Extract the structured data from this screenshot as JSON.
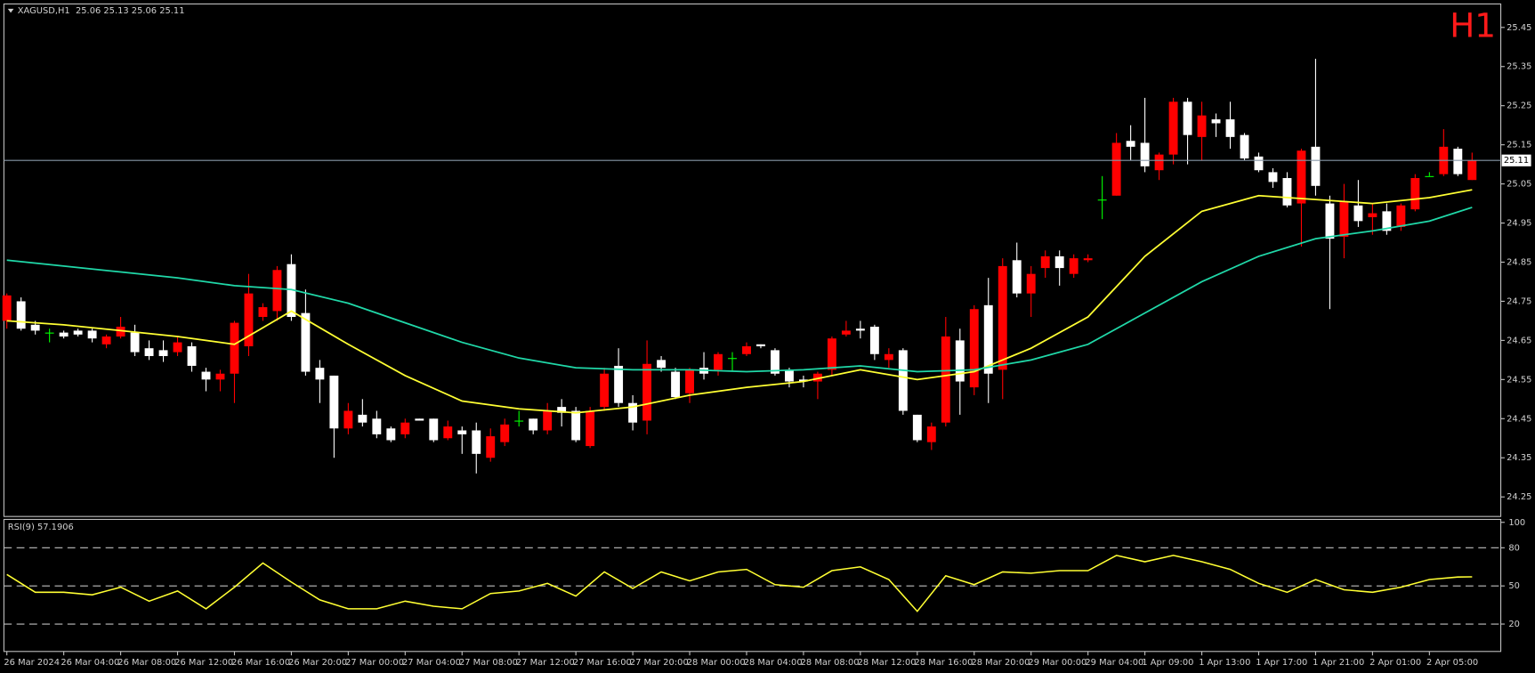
{
  "chart_data": [
    {
      "type": "candlestick",
      "title": "XAGUSD,H1  25.06 25.13 25.06 25.11",
      "badge": "H1",
      "categories": [
        "26 Mar 2024",
        null,
        null,
        null,
        "26 Mar 04:00",
        null,
        null,
        null,
        "26 Mar 08:00",
        null,
        null,
        null,
        "26 Mar 12:00",
        null,
        null,
        null,
        "26 Mar 16:00",
        null,
        null,
        null,
        "26 Mar 20:00",
        null,
        null,
        null,
        "27 Mar 00:00",
        null,
        null,
        null,
        "27 Mar 04:00",
        null,
        null,
        null,
        "27 Mar 08:00",
        null,
        null,
        null,
        "27 Mar 12:00",
        null,
        null,
        null,
        "27 Mar 16:00",
        null,
        null,
        null,
        "27 Mar 20:00",
        null,
        null,
        null,
        "28 Mar 00:00",
        null,
        null,
        null,
        "28 Mar 04:00",
        null,
        null,
        null,
        "28 Mar 08:00",
        null,
        null,
        null,
        "28 Mar 12:00",
        null,
        null,
        null,
        "28 Mar 16:00",
        null,
        null,
        null,
        "28 Mar 20:00",
        null,
        null,
        null,
        "29 Mar 00:00",
        null,
        null,
        null,
        "29 Mar 04:00",
        null,
        null,
        null,
        "1 Apr 09:00",
        null,
        null,
        null,
        "1 Apr 13:00",
        null,
        null,
        null,
        "1 Apr 17:00",
        null,
        null,
        null,
        "1 Apr 21:00",
        null,
        null,
        null,
        "2 Apr 01:00",
        null,
        null,
        null,
        "2 Apr 05:00",
        null,
        null,
        null
      ],
      "open": [
        24.7,
        24.75,
        24.69,
        24.67,
        24.67,
        24.675,
        24.675,
        24.64,
        24.66,
        24.67,
        24.63,
        24.625,
        24.62,
        24.635,
        24.57,
        24.55,
        24.565,
        24.635,
        24.71,
        24.725,
        24.845,
        24.72,
        24.58,
        24.56,
        24.425,
        24.46,
        24.45,
        24.425,
        24.41,
        24.45,
        24.45,
        24.4,
        24.42,
        24.42,
        24.35,
        24.39,
        24.445,
        24.45,
        24.42,
        24.48,
        24.47,
        24.38,
        24.48,
        24.585,
        24.49,
        24.445,
        24.6,
        24.57,
        24.515,
        24.58,
        24.575,
        24.605,
        24.615,
        24.64,
        24.625,
        24.575,
        24.55,
        24.545,
        24.575,
        24.665,
        24.68,
        24.685,
        24.6,
        24.625,
        24.46,
        24.39,
        24.44,
        24.65,
        24.53,
        24.74,
        24.575,
        24.855,
        24.77,
        24.835,
        24.865,
        24.82,
        24.855,
        25.01,
        25.02,
        25.16,
        25.155,
        25.085,
        25.125,
        25.26,
        25.17,
        25.215,
        25.215,
        25.175,
        25.12,
        25.08,
        25.065,
        25.0,
        25.145,
        25.0,
        24.915,
        24.995,
        24.965,
        24.98,
        24.94,
        24.985,
        25.07,
        25.075,
        25.14,
        25.06
      ],
      "high": [
        24.77,
        24.76,
        24.7,
        24.68,
        24.675,
        24.68,
        24.68,
        24.665,
        24.71,
        24.69,
        24.65,
        24.65,
        24.66,
        24.645,
        24.58,
        24.575,
        24.7,
        24.82,
        24.745,
        24.84,
        24.87,
        24.78,
        24.6,
        24.56,
        24.49,
        24.5,
        24.47,
        24.43,
        24.45,
        24.45,
        24.45,
        24.445,
        24.43,
        24.44,
        24.425,
        24.45,
        24.47,
        24.45,
        24.49,
        24.5,
        24.48,
        24.48,
        24.58,
        24.63,
        24.51,
        24.65,
        24.61,
        24.58,
        24.58,
        24.62,
        24.62,
        24.62,
        24.645,
        24.64,
        24.63,
        24.58,
        24.56,
        24.57,
        24.66,
        24.7,
        24.7,
        24.69,
        24.63,
        24.63,
        24.46,
        24.44,
        24.71,
        24.68,
        24.74,
        24.81,
        24.86,
        24.9,
        24.84,
        24.88,
        24.88,
        24.87,
        24.87,
        25.07,
        25.18,
        25.2,
        25.27,
        25.13,
        25.27,
        25.27,
        25.26,
        25.23,
        25.26,
        25.18,
        25.13,
        25.09,
        25.08,
        25.14,
        25.37,
        25.02,
        25.05,
        25.06,
        25.0,
        25.0,
        25.0,
        25.075,
        25.08,
        25.19,
        25.145,
        25.13
      ],
      "low": [
        24.68,
        24.675,
        24.665,
        24.645,
        24.655,
        24.66,
        24.645,
        24.63,
        24.655,
        24.61,
        24.6,
        24.595,
        24.61,
        24.57,
        24.52,
        24.52,
        24.49,
        24.61,
        24.7,
        24.7,
        24.7,
        24.56,
        24.49,
        24.35,
        24.41,
        24.43,
        24.4,
        24.39,
        24.4,
        24.445,
        24.39,
        24.395,
        24.36,
        24.31,
        24.34,
        24.38,
        24.43,
        24.41,
        24.41,
        24.43,
        24.39,
        24.375,
        24.47,
        24.48,
        24.42,
        24.41,
        24.57,
        24.5,
        24.49,
        24.55,
        24.56,
        24.57,
        24.61,
        24.63,
        24.56,
        24.53,
        24.53,
        24.5,
        24.56,
        24.66,
        24.655,
        24.6,
        24.58,
        24.46,
        24.39,
        24.37,
        24.43,
        24.46,
        24.51,
        24.49,
        24.5,
        24.76,
        24.71,
        24.81,
        24.79,
        24.81,
        24.85,
        24.96,
        25.02,
        25.11,
        25.08,
        25.06,
        25.1,
        25.1,
        25.11,
        25.17,
        25.14,
        25.11,
        25.08,
        25.04,
        24.99,
        24.89,
        25.02,
        24.73,
        24.86,
        24.94,
        24.92,
        24.92,
        24.93,
        24.98,
        25.07,
        25.07,
        25.07,
        25.06
      ],
      "close": [
        24.765,
        24.68,
        24.675,
        24.67,
        24.66,
        24.665,
        24.655,
        24.66,
        24.685,
        24.62,
        24.61,
        24.61,
        24.645,
        24.585,
        24.55,
        24.565,
        24.695,
        24.77,
        24.735,
        24.83,
        24.71,
        24.57,
        24.55,
        24.425,
        24.47,
        24.44,
        24.41,
        24.395,
        24.44,
        24.445,
        24.395,
        24.43,
        24.41,
        24.36,
        24.405,
        24.435,
        24.445,
        24.42,
        24.47,
        24.465,
        24.395,
        24.47,
        24.565,
        24.49,
        24.44,
        24.59,
        24.58,
        24.505,
        24.575,
        24.565,
        24.615,
        24.605,
        24.635,
        24.635,
        24.565,
        24.545,
        24.545,
        24.565,
        24.655,
        24.675,
        24.675,
        24.615,
        24.615,
        24.47,
        24.395,
        24.43,
        24.66,
        24.545,
        24.73,
        24.565,
        24.84,
        24.77,
        24.82,
        24.865,
        24.835,
        24.86,
        24.86,
        25.01,
        25.155,
        25.145,
        25.095,
        25.125,
        25.26,
        25.175,
        25.225,
        25.205,
        25.17,
        25.115,
        25.085,
        25.055,
        24.995,
        25.135,
        25.045,
        24.91,
        25.005,
        24.955,
        24.975,
        24.93,
        24.995,
        25.065,
        25.07,
        25.145,
        25.075,
        25.11
      ],
      "up_color": "#ff0000",
      "down_color": "#ffffff",
      "doji_color": "#00ff00",
      "overlays": [
        {
          "color": "#ffff33",
          "x": [
            0,
            4,
            8,
            12,
            16,
            20,
            24,
            28,
            32,
            36,
            40,
            44,
            48,
            52,
            56,
            60,
            64,
            68,
            72,
            76,
            80,
            84,
            88,
            92,
            96,
            100,
            103
          ],
          "values": [
            24.7,
            24.69,
            24.675,
            24.66,
            24.64,
            24.725,
            24.64,
            24.56,
            24.495,
            24.475,
            24.465,
            24.48,
            24.51,
            24.53,
            24.545,
            24.575,
            24.55,
            24.57,
            24.63,
            24.71,
            24.865,
            24.98,
            25.02,
            25.01,
            25.0,
            25.015,
            25.035
          ]
        },
        {
          "color": "#20d8a8",
          "x": [
            0,
            4,
            8,
            12,
            16,
            20,
            24,
            28,
            32,
            36,
            40,
            44,
            48,
            52,
            56,
            60,
            64,
            68,
            72,
            76,
            80,
            84,
            88,
            92,
            96,
            100,
            103
          ],
          "values": [
            24.855,
            24.84,
            24.825,
            24.81,
            24.79,
            24.78,
            24.745,
            24.695,
            24.645,
            24.605,
            24.58,
            24.575,
            24.575,
            24.57,
            24.575,
            24.585,
            24.57,
            24.575,
            24.6,
            24.64,
            24.72,
            24.8,
            24.865,
            24.91,
            24.93,
            24.955,
            24.99
          ]
        }
      ],
      "last_price": 25.11,
      "ylim": [
        24.2,
        25.51
      ],
      "yticks": [
        24.25,
        24.35,
        24.45,
        24.55,
        24.65,
        24.75,
        24.85,
        24.95,
        25.05,
        25.15,
        25.25,
        25.35,
        25.45
      ]
    },
    {
      "type": "line",
      "title": "RSI(9) 57.1906",
      "color": "#ffff33",
      "x": [
        0,
        2,
        4,
        6,
        8,
        10,
        12,
        14,
        16,
        18,
        20,
        22,
        24,
        26,
        28,
        30,
        32,
        34,
        36,
        38,
        40,
        42,
        44,
        46,
        48,
        50,
        52,
        54,
        56,
        58,
        60,
        62,
        64,
        66,
        68,
        70,
        72,
        74,
        76,
        78,
        80,
        82,
        84,
        86,
        88,
        90,
        92,
        94,
        96,
        98,
        100,
        102,
        103
      ],
      "values": [
        59,
        45,
        45,
        43,
        49,
        38,
        46,
        32,
        49,
        68,
        53,
        39,
        32,
        32,
        38,
        34,
        32,
        44,
        46,
        52,
        42,
        61,
        48,
        61,
        54,
        61,
        63,
        51,
        49,
        62,
        65,
        55,
        30,
        58,
        51,
        61,
        60,
        62,
        62,
        74,
        69,
        74,
        69,
        63,
        52,
        45,
        55,
        47,
        45,
        49,
        55,
        57,
        57.19
      ],
      "levels": [
        20,
        50,
        80
      ],
      "ylim": [
        0,
        100
      ],
      "yticks": [
        20,
        50,
        80,
        100
      ]
    }
  ]
}
